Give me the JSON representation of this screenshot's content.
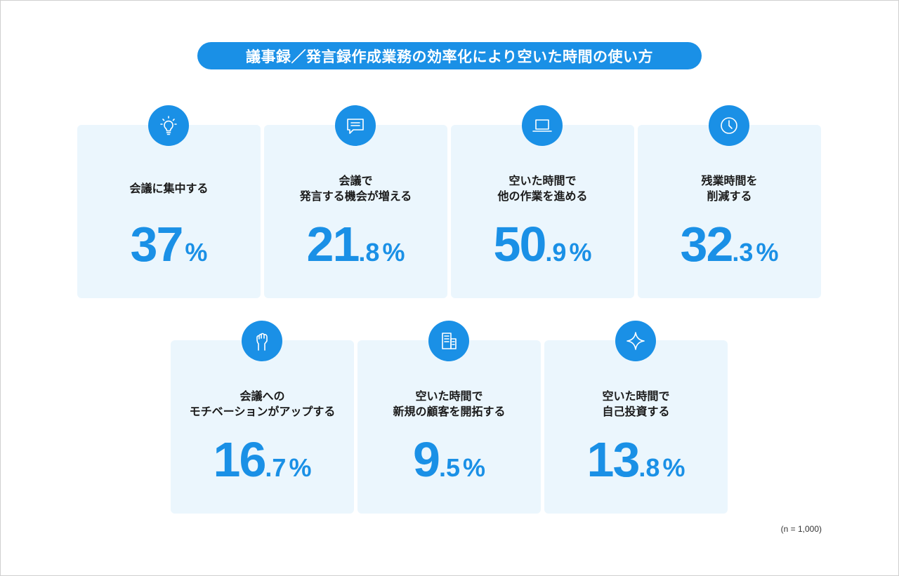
{
  "title": "議事録／発言録作成業務の効率化により空いた時間の使い方",
  "cards": [
    {
      "icon": "lightbulb-icon",
      "line1": "会議に集中する",
      "line2": "",
      "int": "37",
      "dec": "",
      "pct": "%",
      "value": 37
    },
    {
      "icon": "chat-bubble-icon",
      "line1": "会議で",
      "line2": "発言する機会が増える",
      "int": "21",
      "dec": ".8",
      "pct": "%",
      "value": 21.8
    },
    {
      "icon": "laptop-icon",
      "line1": "空いた時間で",
      "line2": "他の作業を進める",
      "int": "50",
      "dec": ".9",
      "pct": "%",
      "value": 50.9
    },
    {
      "icon": "clock-icon",
      "line1": "残業時間を",
      "line2": "削減する",
      "int": "32",
      "dec": ".3",
      "pct": "%",
      "value": 32.3
    },
    {
      "icon": "fist-icon",
      "line1": "会議への",
      "line2": "モチベーションがアップする",
      "int": "16",
      "dec": ".7",
      "pct": "%",
      "value": 16.7
    },
    {
      "icon": "building-icon",
      "line1": "空いた時間で",
      "line2": "新規の顧客を開拓する",
      "int": "9",
      "dec": ".5",
      "pct": "%",
      "value": 9.5
    },
    {
      "icon": "sparkle-icon",
      "line1": "空いた時間で",
      "line2": "自己投資する",
      "int": "13",
      "dec": ".8",
      "pct": "%",
      "value": 13.8
    }
  ],
  "note": "(n = 1,000)",
  "colors": {
    "accent": "#1a90e6",
    "card_bg": "#ebf6fd"
  }
}
